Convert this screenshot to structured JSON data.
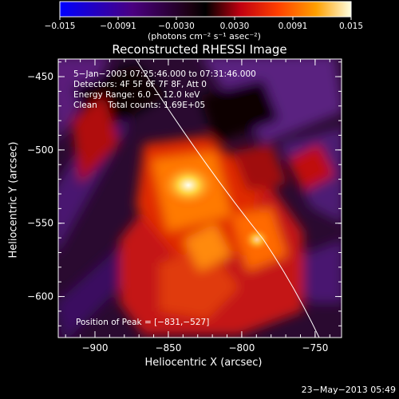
{
  "colorbar": {
    "tick_labels": [
      "−0.015",
      "−0.0091",
      "−0.0030",
      "0.0030",
      "0.0091",
      "0.015"
    ],
    "units": "(photons cm⁻² s⁻¹ asec⁻²)",
    "range": [
      -0.015,
      0.015
    ]
  },
  "title": "Reconstructed RHESSI Image",
  "info": {
    "time": "5−Jan−2003 07:25:46.000 to 07:31:46.000",
    "detectors": "Detectors: 4F 5F 6F 7F 8F, Att 0",
    "energy": "Energy Range: 6.0 − 12.0 keV",
    "clean": "Clean    Total counts: 1.69E+05"
  },
  "peak_label": "Position of Peak = [−831,−527]",
  "axes": {
    "xlabel": "Heliocentric X (arcsec)",
    "ylabel": "Heliocentric Y (arcsec)",
    "xticks": [
      {
        "value": -900,
        "label": "−900"
      },
      {
        "value": -850,
        "label": "−850"
      },
      {
        "value": -800,
        "label": "−800"
      },
      {
        "value": -750,
        "label": "−750"
      }
    ],
    "yticks": [
      {
        "value": -450,
        "label": "−450"
      },
      {
        "value": -500,
        "label": "−500"
      },
      {
        "value": -550,
        "label": "−550"
      },
      {
        "value": -600,
        "label": "−600"
      }
    ],
    "xlim": [
      -925,
      -732
    ],
    "ylim": [
      -628,
      -438
    ]
  },
  "footer_date": "23−May−2013 05:49",
  "colors": {
    "background": "#000000",
    "text": "#ffffff"
  }
}
